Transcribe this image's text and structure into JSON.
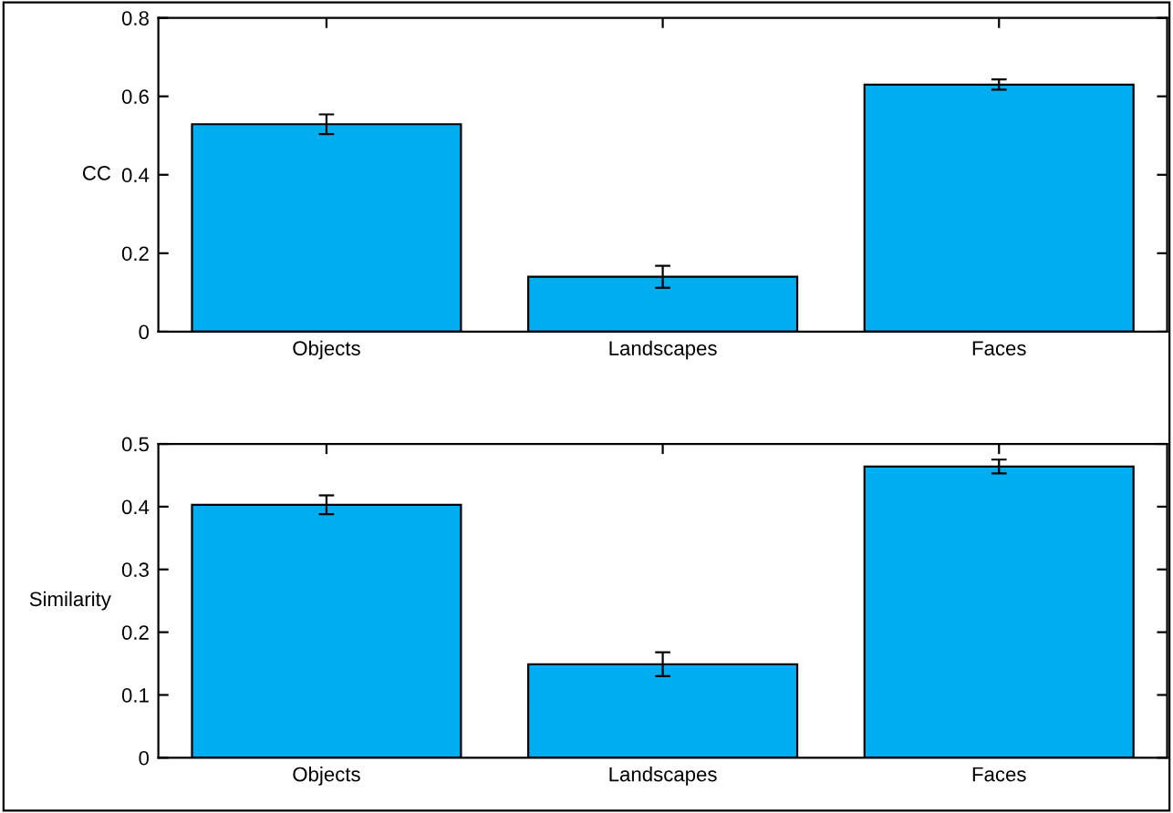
{
  "chart_data": [
    {
      "type": "bar",
      "ylabel": "CC",
      "categories": [
        "Objects",
        "Landscapes",
        "Faces"
      ],
      "values": [
        0.529,
        0.14,
        0.63
      ],
      "errors": [
        0.025,
        0.028,
        0.013
      ],
      "color": "#00aeef",
      "ylim": [
        0,
        0.8
      ],
      "yticks": [
        0,
        0.2,
        0.4,
        0.6,
        0.8
      ],
      "grid": false,
      "legend": false
    },
    {
      "type": "bar",
      "ylabel": "Similarity",
      "categories": [
        "Objects",
        "Landscapes",
        "Faces"
      ],
      "values": [
        0.403,
        0.149,
        0.464
      ],
      "errors": [
        0.015,
        0.019,
        0.011
      ],
      "color": "#00aeef",
      "ylim": [
        0,
        0.5
      ],
      "yticks": [
        0,
        0.1,
        0.2,
        0.3,
        0.4,
        0.5
      ],
      "grid": false,
      "legend": false
    }
  ]
}
